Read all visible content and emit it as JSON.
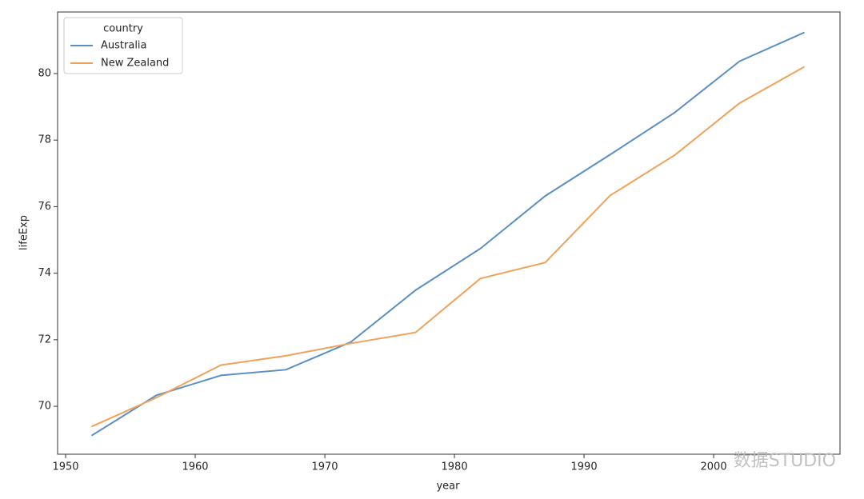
{
  "chart_data": {
    "type": "line",
    "x": [
      1952,
      1957,
      1962,
      1967,
      1972,
      1977,
      1982,
      1987,
      1992,
      1997,
      2002,
      2007
    ],
    "series": [
      {
        "name": "Australia",
        "color": "#5b8fc4",
        "values": [
          69.12,
          70.33,
          70.93,
          71.1,
          71.93,
          73.49,
          74.74,
          76.32,
          77.56,
          78.83,
          80.37,
          81.235
        ]
      },
      {
        "name": "New Zealand",
        "color": "#f0a25a",
        "values": [
          69.39,
          70.26,
          71.24,
          71.52,
          71.89,
          72.22,
          73.84,
          74.32,
          76.33,
          77.55,
          79.11,
          80.204
        ]
      }
    ],
    "xlabel": "year",
    "ylabel": "lifeExp",
    "legend_title": "country",
    "legend": "upper left",
    "xlim": [
      1949.38,
      2009.75
    ],
    "ylim": [
      68.56,
      81.85
    ],
    "xticks": [
      1950,
      1960,
      1970,
      1980,
      1990,
      2000
    ],
    "yticks": [
      70,
      72,
      74,
      76,
      78,
      80
    ],
    "watermark": "数据STUDIO"
  }
}
